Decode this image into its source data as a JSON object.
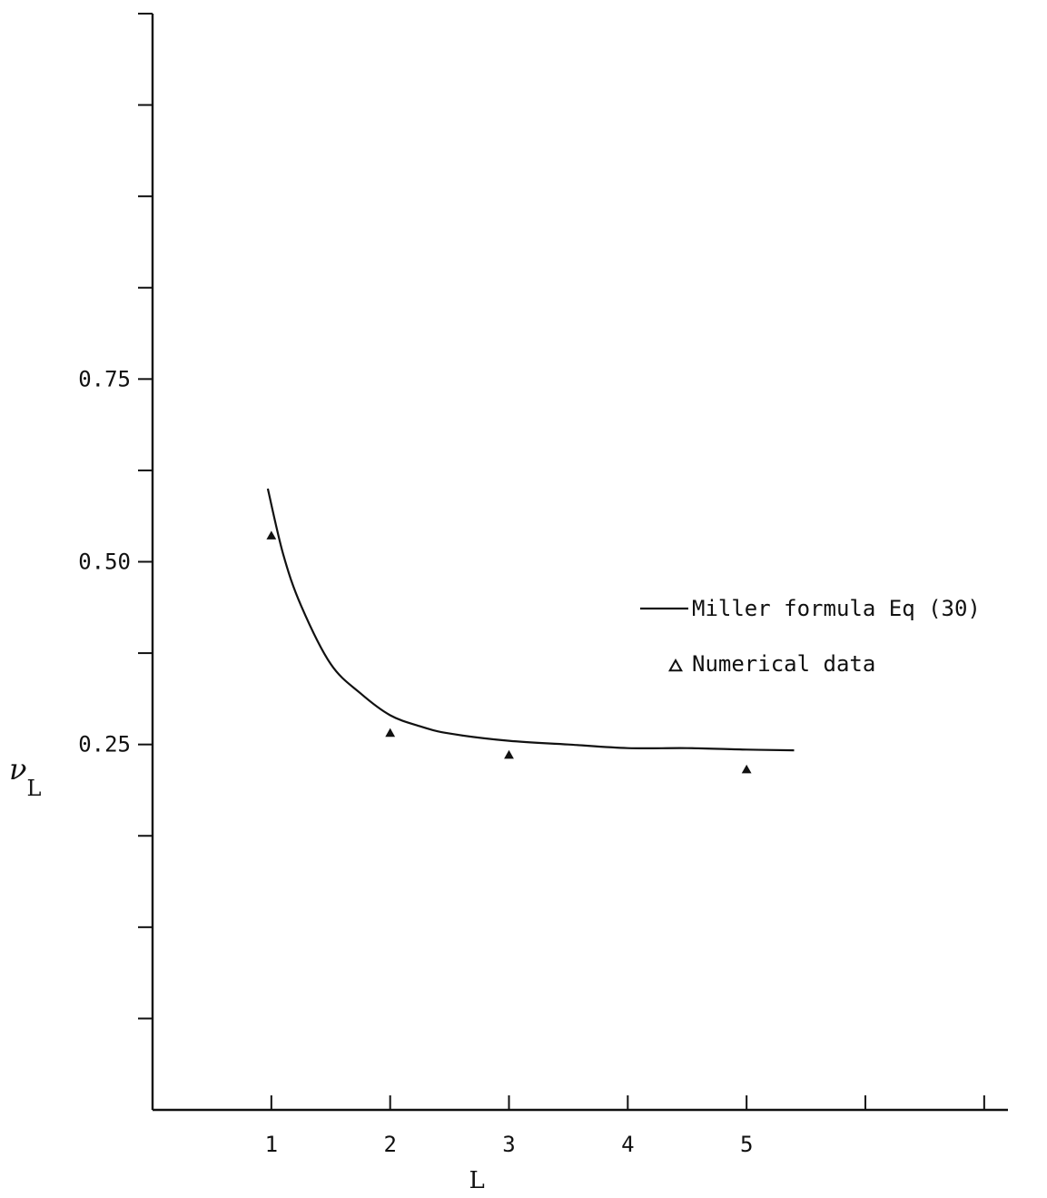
{
  "chart_data": {
    "type": "line",
    "xlabel": "L",
    "ylabel": "ν",
    "ylabel_subscript": "L",
    "xlim": [
      0,
      7.2
    ],
    "ylim": [
      -0.25,
      1.25
    ],
    "x_ticks": [
      1,
      2,
      3,
      4,
      5,
      6,
      7
    ],
    "x_tick_labels": [
      "1",
      "2",
      "3",
      "4",
      "5",
      "",
      ""
    ],
    "y_ticks": [
      -0.125,
      0.0,
      0.125,
      0.25,
      0.375,
      0.5,
      0.625,
      0.75,
      0.875,
      1.0,
      1.125
    ],
    "y_tick_labels": [
      "",
      "",
      "",
      "0.25",
      "",
      "0.50",
      "",
      "0.75",
      "",
      "",
      ""
    ],
    "grid": false,
    "legend_position": "right",
    "series": [
      {
        "name": "Miller formula Eq (30)",
        "kind": "line",
        "x": [
          0.97,
          1.1,
          1.25,
          1.5,
          1.75,
          2.0,
          2.25,
          2.5,
          3.0,
          3.5,
          4.0,
          4.5,
          5.0,
          5.4
        ],
        "y": [
          0.6,
          0.51,
          0.44,
          0.36,
          0.32,
          0.29,
          0.275,
          0.265,
          0.255,
          0.25,
          0.245,
          0.245,
          0.243,
          0.242
        ]
      },
      {
        "name": "Numerical data",
        "kind": "scatter",
        "marker": "triangle",
        "x": [
          1,
          2,
          3,
          5
        ],
        "y": [
          0.535,
          0.265,
          0.235,
          0.215
        ]
      }
    ]
  }
}
